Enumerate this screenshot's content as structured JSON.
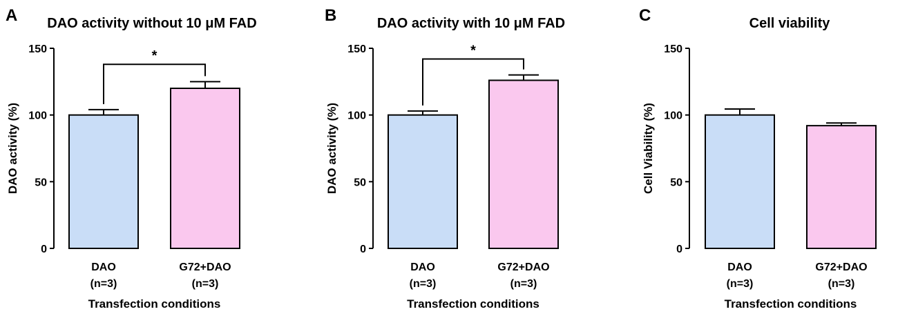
{
  "chart_data": [
    {
      "type": "bar",
      "panel": "A",
      "title": "DAO activity without 10 μM FAD",
      "xlabel": "Transfection conditions",
      "ylabel": "DAO activity (%)",
      "ylim": [
        0,
        150
      ],
      "yticks": [
        "0",
        "50",
        "100",
        "150"
      ],
      "categories": [
        [
          "DAO",
          "(n=3)"
        ],
        [
          "G72+DAO",
          "(n=3)"
        ]
      ],
      "values": [
        100,
        120
      ],
      "errors": [
        4,
        5
      ],
      "colors": [
        "#c9ddf7",
        "#fac8ee"
      ],
      "significance": {
        "between": [
          0,
          1
        ],
        "label": "*",
        "y": 138
      }
    },
    {
      "type": "bar",
      "panel": "B",
      "title": "DAO activity with 10 μM FAD",
      "xlabel": "Transfection conditions",
      "ylabel": "DAO activity (%)",
      "ylim": [
        0,
        150
      ],
      "yticks": [
        "0",
        "50",
        "100",
        "150"
      ],
      "categories": [
        [
          "DAO",
          "(n=3)"
        ],
        [
          "G72+DAO",
          "(n=3)"
        ]
      ],
      "values": [
        100,
        126
      ],
      "errors": [
        3,
        4
      ],
      "colors": [
        "#c9ddf7",
        "#fac8ee"
      ],
      "significance": {
        "between": [
          0,
          1
        ],
        "label": "*",
        "y": 142
      }
    },
    {
      "type": "bar",
      "panel": "C",
      "title": "Cell viability",
      "xlabel": "Transfection conditions",
      "ylabel": "Cell Viability (%)",
      "ylim": [
        0,
        150
      ],
      "yticks": [
        "0",
        "50",
        "100",
        "150"
      ],
      "categories": [
        [
          "DAO",
          "(n=3)"
        ],
        [
          "G72+DAO",
          "(n=3)"
        ]
      ],
      "values": [
        100,
        92
      ],
      "errors": [
        4.5,
        2
      ],
      "colors": [
        "#c9ddf7",
        "#fac8ee"
      ],
      "significance": null
    }
  ]
}
